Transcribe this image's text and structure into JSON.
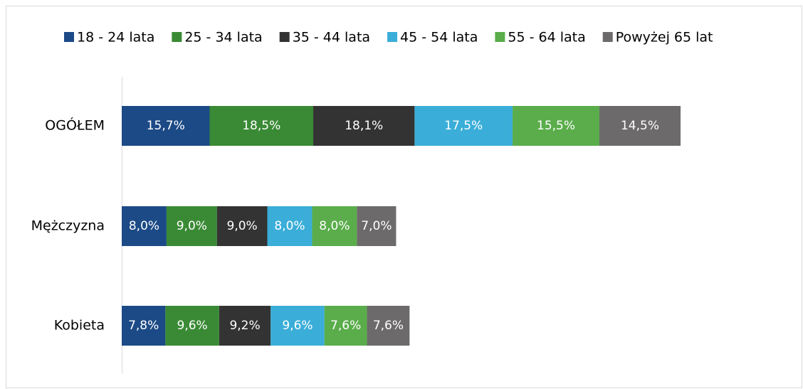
{
  "chart_data": {
    "type": "stacked-bar-horizontal",
    "categories": [
      "OGÓŁEM",
      "Mężczyzna",
      "Kobieta"
    ],
    "series": [
      {
        "name": "18 - 24 lata",
        "color": "#1c4a86",
        "values": [
          15.7,
          8.0,
          7.8
        ],
        "value_labels": [
          "15,7%",
          "8,0%",
          "7,8%"
        ]
      },
      {
        "name": "25 - 34 lata",
        "color": "#3a8a35",
        "values": [
          18.5,
          9.0,
          9.6
        ],
        "value_labels": [
          "18,5%",
          "9,0%",
          "9,6%"
        ]
      },
      {
        "name": "35 - 44 lata",
        "color": "#333333",
        "values": [
          18.1,
          9.0,
          9.2
        ],
        "value_labels": [
          "18,1%",
          "9,0%",
          "9,2%"
        ]
      },
      {
        "name": "45 - 54 lata",
        "color": "#3aaed8",
        "values": [
          17.5,
          8.0,
          9.6
        ],
        "value_labels": [
          "17,5%",
          "8,0%",
          "9,6%"
        ]
      },
      {
        "name": "55 - 64 lata",
        "color": "#5aad4a",
        "values": [
          15.5,
          8.0,
          7.6
        ],
        "value_labels": [
          "15,5%",
          "8,0%",
          "7,6%"
        ]
      },
      {
        "name": "Powyżej 65 lat",
        "color": "#6d6a6b",
        "values": [
          14.5,
          7.0,
          7.6
        ],
        "value_labels": [
          "14,5%",
          "7,0%",
          "7,6%"
        ]
      }
    ],
    "legend": "top"
  }
}
